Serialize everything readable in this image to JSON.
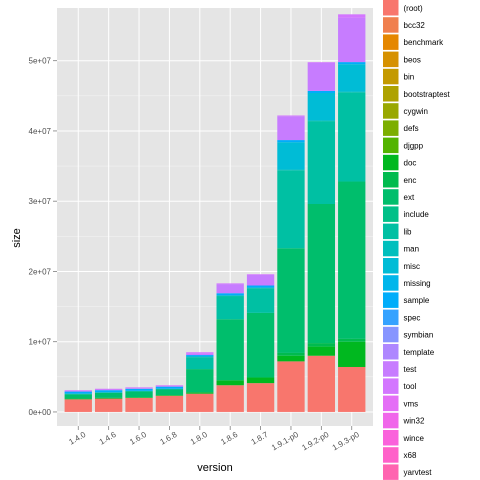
{
  "chart_data": {
    "type": "bar",
    "stacked": true,
    "xlabel": "version",
    "ylabel": "size",
    "ylim": [
      -2000000,
      57500000
    ],
    "y_ticks": [
      0,
      10000000,
      20000000,
      30000000,
      40000000,
      50000000
    ],
    "y_tick_labels": [
      "0e+00",
      "1e+07",
      "2e+07",
      "3e+07",
      "4e+07",
      "5e+07"
    ],
    "grid": true,
    "legend_placement": "right",
    "categories": [
      "1.4.0",
      "1.4.6",
      "1.6.0",
      "1.6.8",
      "1.8.0",
      "1.8.6",
      "1.8.7",
      "1.9.1-p0",
      "1.9.2-p0",
      "1.9.3-p0"
    ],
    "legend": [
      {
        "name": "(root)",
        "color": "#F8766D"
      },
      {
        "name": "bcc32",
        "color": "#F07F4E"
      },
      {
        "name": "benchmark",
        "color": "#E58700"
      },
      {
        "name": "beos",
        "color": "#D69100"
      },
      {
        "name": "bin",
        "color": "#C49A00"
      },
      {
        "name": "bootstraptest",
        "color": "#AEA200"
      },
      {
        "name": "cygwin",
        "color": "#99A800"
      },
      {
        "name": "defs",
        "color": "#7CAE00"
      },
      {
        "name": "djgpp",
        "color": "#53B400"
      },
      {
        "name": "doc",
        "color": "#00B81F"
      },
      {
        "name": "enc",
        "color": "#00BB4E"
      },
      {
        "name": "ext",
        "color": "#00BE6C"
      },
      {
        "name": "include",
        "color": "#00C088"
      },
      {
        "name": "lib",
        "color": "#00C0A3"
      },
      {
        "name": "man",
        "color": "#00BFBD"
      },
      {
        "name": "misc",
        "color": "#00BCD6"
      },
      {
        "name": "missing",
        "color": "#00B6EB"
      },
      {
        "name": "sample",
        "color": "#00ADFA"
      },
      {
        "name": "spec",
        "color": "#35A2FF"
      },
      {
        "name": "symbian",
        "color": "#8795FF"
      },
      {
        "name": "template",
        "color": "#AE87FF"
      },
      {
        "name": "test",
        "color": "#C77CFF"
      },
      {
        "name": "tool",
        "color": "#D376FF"
      },
      {
        "name": "vms",
        "color": "#E46EF6"
      },
      {
        "name": "win32",
        "color": "#F066EA"
      },
      {
        "name": "wince",
        "color": "#FA62DB"
      },
      {
        "name": "x68",
        "color": "#FF61C9"
      },
      {
        "name": "yarvtest",
        "color": "#FF64B0"
      }
    ],
    "series": [
      {
        "name": "(root)",
        "values": [
          1800000,
          1900000,
          2000000,
          2300000,
          2600000,
          3800000,
          4100000,
          7200000,
          8000000,
          6400000
        ]
      },
      {
        "name": "doc",
        "values": [
          100000,
          100000,
          100000,
          100000,
          200000,
          700000,
          800000,
          800000,
          1300000,
          3600000
        ]
      },
      {
        "name": "enc",
        "values": [
          0,
          0,
          0,
          0,
          0,
          0,
          0,
          400000,
          500000,
          400000
        ]
      },
      {
        "name": "ext",
        "values": [
          600000,
          700000,
          800000,
          800000,
          3300000,
          8700000,
          9200000,
          14900000,
          19800000,
          22400000
        ]
      },
      {
        "name": "lib",
        "values": [
          100000,
          100000,
          100000,
          100000,
          1700000,
          3300000,
          3500000,
          11100000,
          11800000,
          12700000
        ]
      },
      {
        "name": "man",
        "values": [
          0,
          0,
          0,
          0,
          100000,
          100000,
          100000,
          100000,
          100000,
          100000
        ]
      },
      {
        "name": "misc",
        "values": [
          0,
          0,
          0,
          0,
          0,
          0,
          0,
          3900000,
          3900000,
          3900000
        ]
      },
      {
        "name": "sample",
        "values": [
          300000,
          300000,
          300000,
          300000,
          200000,
          300000,
          300000,
          300000,
          300000,
          300000
        ]
      },
      {
        "name": "test",
        "values": [
          100000,
          100000,
          100000,
          100000,
          200000,
          1300000,
          1500000,
          3400000,
          4000000,
          6300000
        ]
      },
      {
        "name": "tool",
        "values": [
          100000,
          100000,
          100000,
          100000,
          200000,
          100000,
          100000,
          100000,
          100000,
          500000
        ]
      }
    ]
  }
}
